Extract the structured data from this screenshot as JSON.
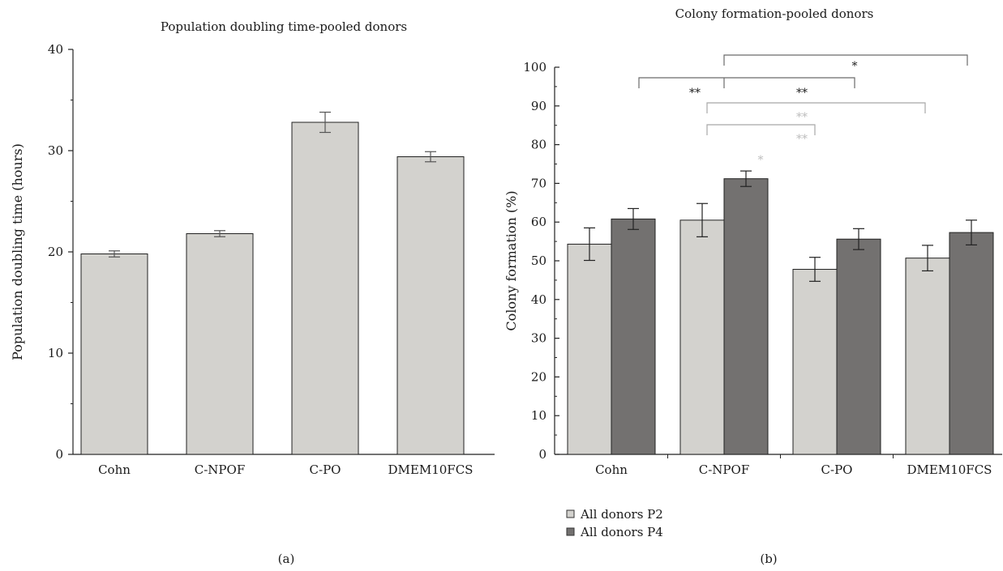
{
  "chart_data": [
    {
      "type": "bar",
      "panel_label": "(a)",
      "title": "Population doubling time-pooled donors",
      "xlabel": "",
      "ylabel": "Population doubling time (hours)",
      "ylim": [
        0,
        40
      ],
      "yticks": [
        0,
        10,
        20,
        30,
        40
      ],
      "categories": [
        "Cohn",
        "C-NPOF",
        "C-PO",
        "DMEM10FCS"
      ],
      "series": [
        {
          "values": [
            19.8,
            21.8,
            32.8,
            29.4
          ],
          "errors": [
            0.3,
            0.3,
            1.0,
            0.5
          ],
          "color": "#d3d2ce"
        }
      ],
      "grid": false
    },
    {
      "type": "bar",
      "panel_label": "(b)",
      "title": "Colony formation-pooled donors",
      "xlabel": "",
      "ylabel": "Colony formation (%)",
      "ylim": [
        0,
        100
      ],
      "yticks": [
        0,
        10,
        20,
        30,
        40,
        50,
        60,
        70,
        80,
        90,
        100
      ],
      "categories": [
        "Cohn",
        "C-NPOF",
        "C-PO",
        "DMEM10FCS"
      ],
      "series": [
        {
          "name": "All donors P2",
          "values": [
            54.3,
            60.5,
            47.8,
            50.7
          ],
          "errors": [
            4.2,
            4.3,
            3.1,
            3.3
          ],
          "color": "#d3d2ce"
        },
        {
          "name": "All donors P4",
          "values": [
            60.8,
            71.2,
            55.6,
            57.3
          ],
          "errors": [
            2.7,
            2.0,
            2.7,
            3.2
          ],
          "color": "#737170"
        }
      ],
      "legend_position": "bottom-left",
      "grid": false,
      "annotations": [
        {
          "label": "**",
          "tone": "dark",
          "from_group": 0,
          "to_group": 2
        },
        {
          "label": "*",
          "tone": "dark",
          "from_group": 1,
          "to_group": 3
        },
        {
          "label": "**",
          "tone": "dark",
          "from_group": 1,
          "to_group": 2
        },
        {
          "label": "**",
          "tone": "light",
          "from_group": 1,
          "to_group": 3
        },
        {
          "label": "**",
          "tone": "light",
          "from_group": 1,
          "to_group": 2
        },
        {
          "label": "*",
          "tone": "light",
          "from_group": 1,
          "to_group": 2
        }
      ]
    }
  ]
}
